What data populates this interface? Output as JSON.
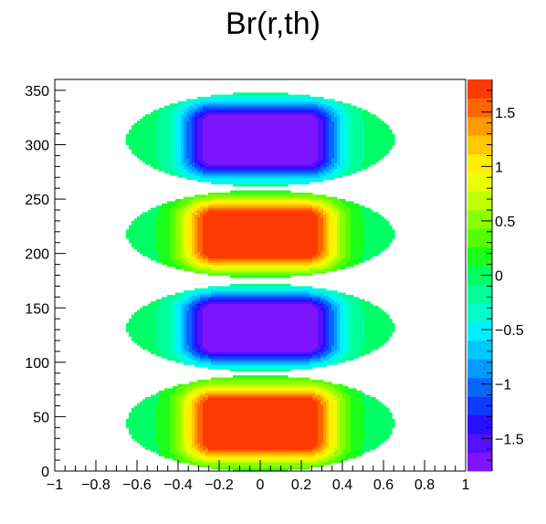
{
  "chart_data": {
    "type": "heatmap",
    "title": "Br(r,th)",
    "xlabel": "",
    "ylabel": "",
    "xlim": [
      -1,
      1
    ],
    "ylim": [
      0,
      360
    ],
    "x_ticks": [
      -1,
      -0.8,
      -0.6,
      -0.4,
      -0.2,
      0,
      0.2,
      0.4,
      0.6,
      0.8,
      1
    ],
    "x_tick_labels": [
      "−1",
      "−0.8",
      "−0.6",
      "−0.4",
      "−0.2",
      "0",
      "0.2",
      "0.4",
      "0.6",
      "0.8",
      "1"
    ],
    "y_ticks": [
      0,
      50,
      100,
      150,
      200,
      250,
      300,
      350
    ],
    "y_tick_labels": [
      "0",
      "50",
      "100",
      "150",
      "200",
      "250",
      "300",
      "350"
    ],
    "zlim": [
      -1.8,
      1.8
    ],
    "z_ticks": [
      -1.5,
      -1,
      -0.5,
      0,
      0.5,
      1,
      1.5
    ],
    "z_tick_labels": [
      "−1.5",
      "−1",
      "−0.5",
      "0",
      "0.5",
      "1",
      "1.5"
    ],
    "grid": false,
    "colorbar": "right",
    "palette": [
      "#7f14ff",
      "#5311ff",
      "#2b0eff",
      "#0f3bff",
      "#0866ff",
      "#039bff",
      "#00c8ff",
      "#00f0ff",
      "#00ffc8",
      "#00ff9b",
      "#00ff66",
      "#1aff1a",
      "#55ff00",
      "#8aff00",
      "#c0ff00",
      "#eaff00",
      "#ffee00",
      "#ffc800",
      "#ff9b00",
      "#ff6600",
      "#ff3a00"
    ],
    "bands": [
      {
        "theta_range": [
          0,
          88
        ],
        "sign": 1,
        "peak": 1.8
      },
      {
        "theta_range": [
          92,
          172
        ],
        "sign": -1,
        "peak": -1.8
      },
      {
        "theta_range": [
          178,
          258
        ],
        "sign": 1,
        "peak": 1.8
      },
      {
        "theta_range": [
          262,
          348
        ],
        "sign": -1,
        "peak": -1.8
      }
    ],
    "r_extent": 0.65
  }
}
